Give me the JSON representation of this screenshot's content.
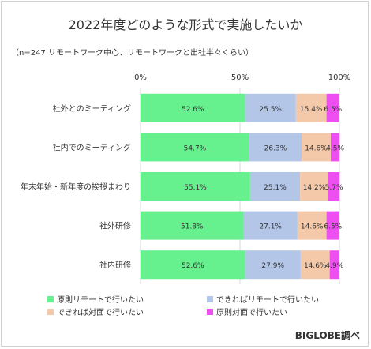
{
  "title": "2022年度どのような形式で実施したいか",
  "subtitle": "（n=247 リモートワーク中心、リモートワークと出社半々くらい）",
  "credit": "BIGLOBE調べ",
  "chart_data": {
    "type": "bar",
    "orientation": "horizontal",
    "stacked": "percent",
    "categories": [
      "社外とのミーティング",
      "社内でのミーティング",
      "年末年始・新年度の挨拶まわり",
      "社外研修",
      "社内研修"
    ],
    "series": [
      {
        "name": "原則リモートで行いたい",
        "color": "#66f08e",
        "values": [
          52.6,
          54.7,
          55.1,
          51.8,
          52.6
        ]
      },
      {
        "name": "できればリモートで行いたい",
        "color": "#b3c6e8",
        "values": [
          25.5,
          26.3,
          25.1,
          27.1,
          27.9
        ]
      },
      {
        "name": "できれば対面で行いたい",
        "color": "#f4c9aa",
        "values": [
          15.4,
          14.6,
          14.2,
          14.6,
          14.6
        ]
      },
      {
        "name": "原則対面で行いたい",
        "color": "#ee4ff0",
        "values": [
          6.5,
          4.5,
          5.7,
          6.5,
          4.9
        ]
      }
    ],
    "data_labels": [
      [
        "52.6%",
        "54.7%",
        "55.1%",
        "51.8%",
        "52.6%"
      ],
      [
        "25.5%",
        "26.3%",
        "25.1%",
        "27.1%",
        "27.9%"
      ],
      [
        "15.4%",
        "14.6%",
        "14.2%",
        "14.6%",
        "14.6%"
      ],
      [
        "6.5%",
        "4.5%",
        "5.7%",
        "6.5%",
        "4.9%"
      ]
    ],
    "x_ticks": [
      "0%",
      "50%",
      "100%"
    ],
    "x_tick_values": [
      0,
      50,
      100
    ],
    "xlim": [
      0,
      100
    ],
    "grid": true,
    "legend": "bottom"
  }
}
